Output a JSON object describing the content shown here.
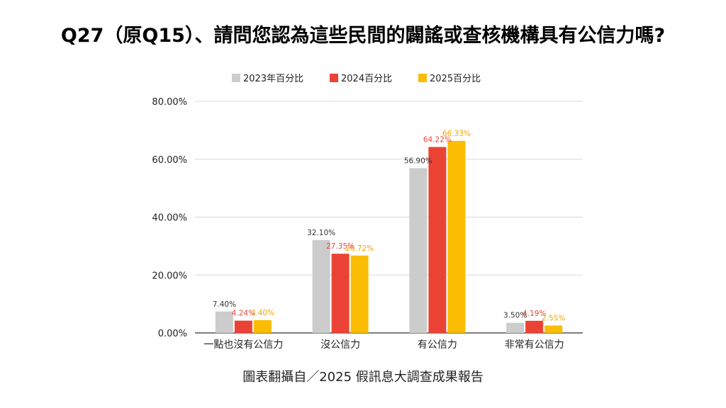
{
  "title": "Q27（原Q15）、請問您認為這些民間的闢謠或查核機構具有公信力嗎?",
  "caption": "圖表翻攝自／2025 假訊息大調查成果報告",
  "chart_data": {
    "type": "bar",
    "categories": [
      "一點也沒有公信力",
      "沒公信力",
      "有公信力",
      "非常有公信力"
    ],
    "series": [
      {
        "name": "2023年百分比",
        "color": "#cccccc",
        "label_color": "#333333",
        "values": [
          7.4,
          32.1,
          56.9,
          3.5
        ],
        "labels": [
          "7.40%",
          "32.10%",
          "56.90%",
          "3.50%"
        ]
      },
      {
        "name": "2024百分比",
        "color": "#ea4335",
        "label_color": "#ea4335",
        "values": [
          4.24,
          27.35,
          64.22,
          4.19
        ],
        "labels": [
          "4.24%",
          "27.35%",
          "64.22%",
          "4.19%"
        ]
      },
      {
        "name": "2025百分比",
        "color": "#fbbc04",
        "label_color": "#f4a300",
        "values": [
          4.4,
          26.72,
          66.33,
          2.55
        ],
        "labels": [
          "4.40%",
          "26.72%",
          "66.33%",
          "2.55%"
        ]
      }
    ],
    "ylim": [
      0,
      80
    ],
    "yticks": [
      0,
      20,
      40,
      60,
      80
    ],
    "ytick_labels": [
      "0.00%",
      "20.00%",
      "40.00%",
      "60.00%",
      "80.00%"
    ],
    "grid": true,
    "legend_position": "top-center"
  }
}
